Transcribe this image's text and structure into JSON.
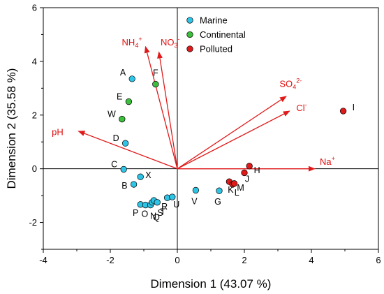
{
  "chart_data": {
    "type": "scatter",
    "xlabel": "Dimension 1 (43.07 %)",
    "ylabel": "Dimension 2 (35.58 %)",
    "xlim": [
      -4,
      6
    ],
    "ylim": [
      -3,
      6
    ],
    "xticks": [
      -4,
      -2,
      0,
      2,
      4,
      6
    ],
    "yticks": [
      -2,
      0,
      2,
      4,
      6
    ],
    "grid": false,
    "legend_position": "top-center",
    "series": [
      {
        "name": "Marine",
        "color": "#2ec4e6",
        "points": [
          {
            "label": "A",
            "x": -1.35,
            "y": 3.35
          },
          {
            "label": "D",
            "x": -1.55,
            "y": 0.95
          },
          {
            "label": "C",
            "x": -1.6,
            "y": -0.02
          },
          {
            "label": "X",
            "x": -1.1,
            "y": -0.3
          },
          {
            "label": "B",
            "x": -1.3,
            "y": -0.58
          },
          {
            "label": "P",
            "x": -1.1,
            "y": -1.33
          },
          {
            "label": "O",
            "x": -0.95,
            "y": -1.35
          },
          {
            "label": "N",
            "x": -0.8,
            "y": -1.35
          },
          {
            "label": "Q",
            "x": -0.75,
            "y": -1.25
          },
          {
            "label": "S",
            "x": -0.7,
            "y": -1.18
          },
          {
            "label": "T",
            "x": -0.6,
            "y": -1.25
          },
          {
            "label": "R",
            "x": -0.3,
            "y": -1.08
          },
          {
            "label": "U",
            "x": -0.15,
            "y": -1.05
          },
          {
            "label": "V",
            "x": 0.55,
            "y": -0.8
          },
          {
            "label": "G",
            "x": 1.25,
            "y": -0.82
          }
        ]
      },
      {
        "name": "Continental",
        "color": "#3cbf3c",
        "points": [
          {
            "label": "F",
            "x": -0.65,
            "y": 3.15
          },
          {
            "label": "E",
            "x": -1.45,
            "y": 2.5
          },
          {
            "label": "W",
            "x": -1.65,
            "y": 1.85
          }
        ]
      },
      {
        "name": "Polluted",
        "color": "#e01a1a",
        "points": [
          {
            "label": "K",
            "x": 1.55,
            "y": -0.48
          },
          {
            "label": "L",
            "x": 1.65,
            "y": -0.58
          },
          {
            "label": "M",
            "x": 1.7,
            "y": -0.55
          },
          {
            "label": "J",
            "x": 2.0,
            "y": -0.15
          },
          {
            "label": "H",
            "x": 2.15,
            "y": 0.1
          },
          {
            "label": "I",
            "x": 4.95,
            "y": 2.15
          }
        ]
      }
    ],
    "vectors": [
      {
        "label": "NH",
        "sub": "4",
        "sup": "+",
        "x": -0.95,
        "y": 4.55
      },
      {
        "label": "NO",
        "sub": "3",
        "sup": "-",
        "x": -0.55,
        "y": 4.35
      },
      {
        "label": "SO",
        "sub": "4",
        "sup": "2-",
        "x": 3.25,
        "y": 2.7
      },
      {
        "label": "Cl",
        "sub": "",
        "sup": "-",
        "x": 3.35,
        "y": 2.15
      },
      {
        "label": "pH",
        "sub": "",
        "sup": "",
        "x": -2.95,
        "y": 1.4
      },
      {
        "label": "Na",
        "sub": "",
        "sup": "+",
        "x": 4.1,
        "y": 0.0
      }
    ],
    "vector_color": "#e01a1a"
  }
}
